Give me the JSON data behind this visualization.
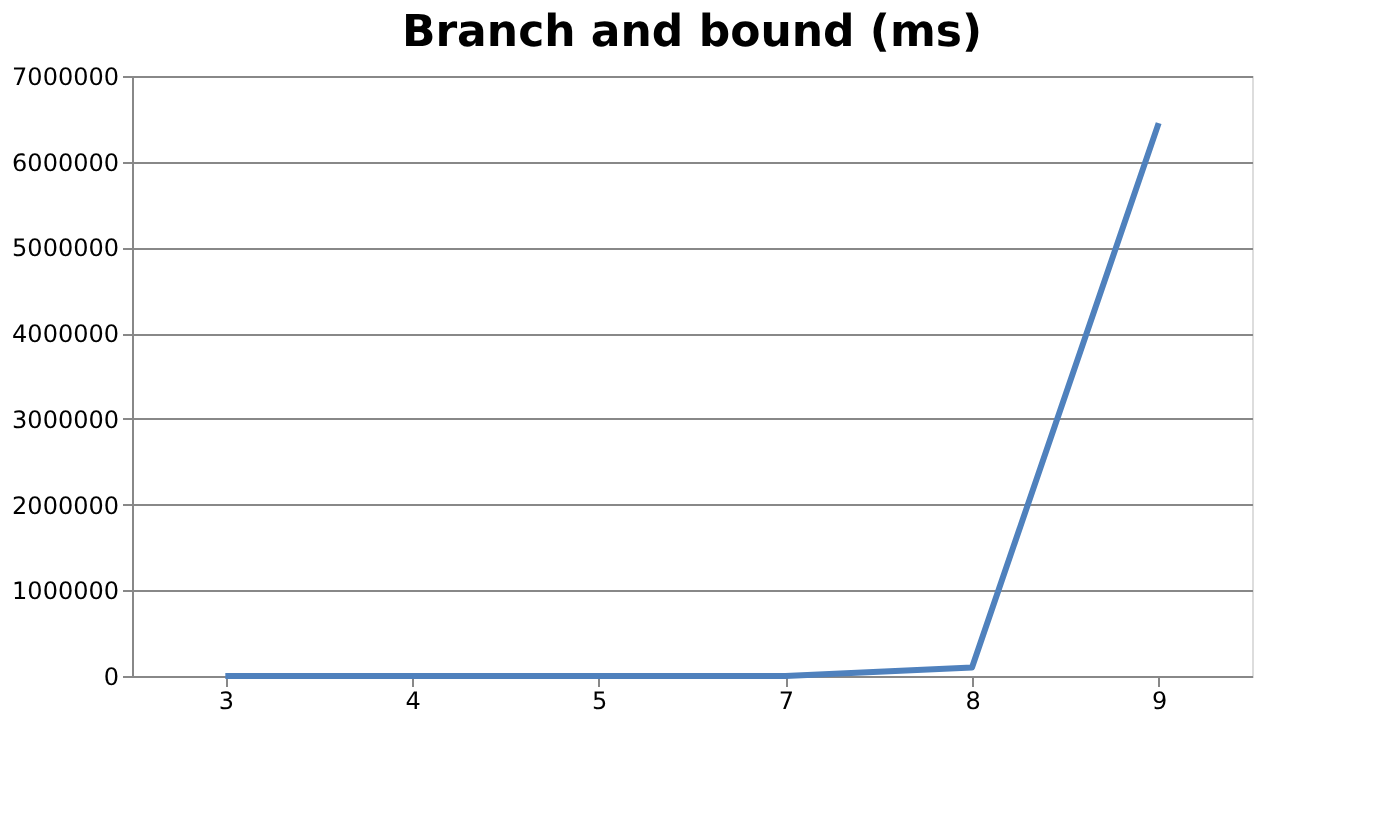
{
  "chart_data": {
    "type": "line",
    "title": "Branch and bound (ms)",
    "categories": [
      "3",
      "4",
      "5",
      "7",
      "8",
      "9"
    ],
    "series": [
      {
        "color": "#4f81bd",
        "values": [
          0,
          0,
          0,
          0,
          100000,
          6450000
        ]
      }
    ],
    "ylim": [
      0,
      7000000
    ],
    "yticks": [
      0,
      1000000,
      2000000,
      3000000,
      4000000,
      5000000,
      6000000,
      7000000
    ],
    "grid": "y",
    "marker": "none",
    "line_style": "solid"
  }
}
